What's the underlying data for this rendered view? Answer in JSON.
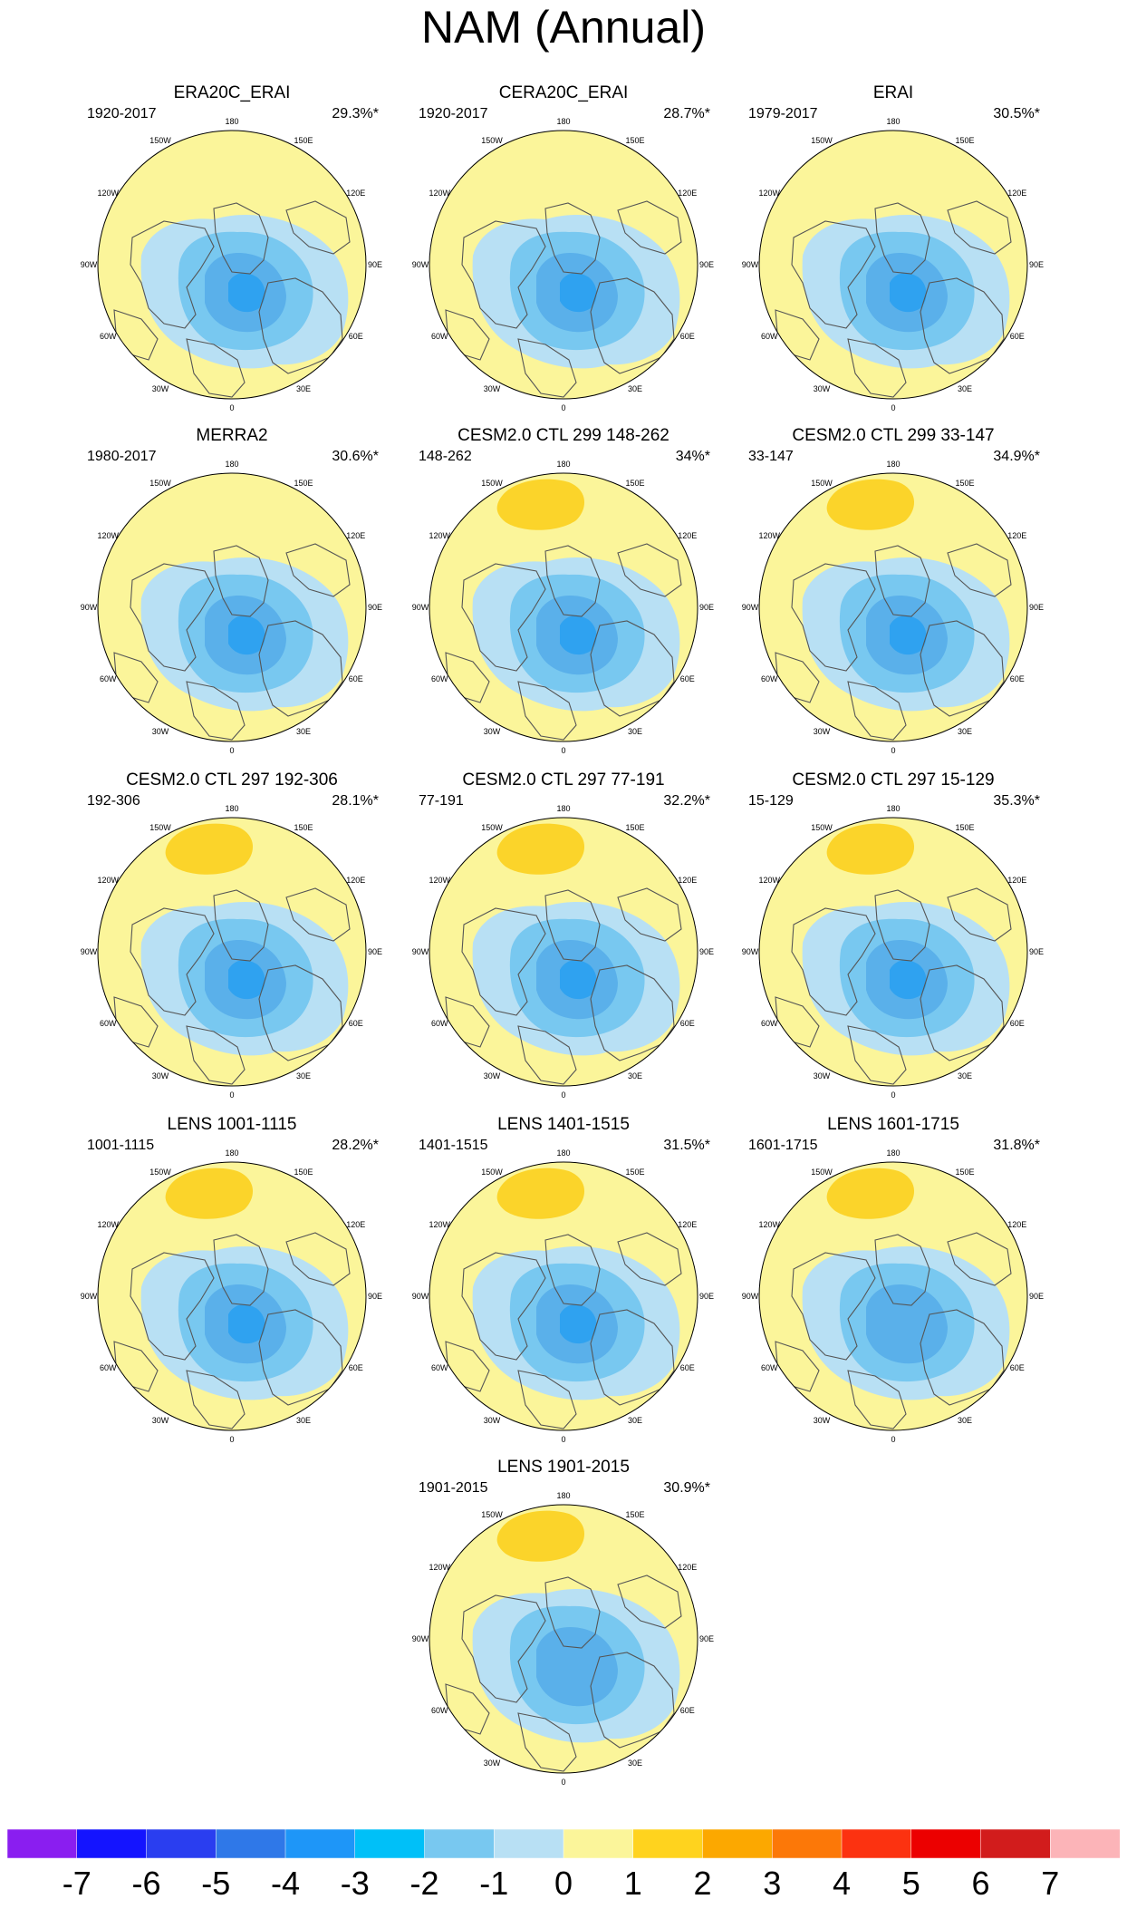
{
  "title": "NAM (Annual)",
  "chart_data": {
    "type": "contour-map",
    "projection": "polar-stereographic north",
    "variable": "NAM regression pattern",
    "longitude_labels": [
      "180",
      "150E",
      "120E",
      "90E",
      "60E",
      "30E",
      "0",
      "30W",
      "60W",
      "90W",
      "120W",
      "150W"
    ],
    "panels": [
      {
        "title": "ERA20C_ERAI",
        "period": "1920-2017",
        "variance": "29.3%*",
        "min_level": -4,
        "max_level": 1,
        "warm_lobe": false
      },
      {
        "title": "CERA20C_ERAI",
        "period": "1920-2017",
        "variance": "28.7%*",
        "min_level": -4,
        "max_level": 1,
        "warm_lobe": false
      },
      {
        "title": "ERAI",
        "period": "1979-2017",
        "variance": "30.5%*",
        "min_level": -4,
        "max_level": 1,
        "warm_lobe": false
      },
      {
        "title": "MERRA2",
        "period": "1980-2017",
        "variance": "30.6%*",
        "min_level": -4,
        "max_level": 2,
        "warm_lobe": false
      },
      {
        "title": "CESM2.0 CTL 299 148-262",
        "period": "148-262",
        "variance": "34%*",
        "min_level": -4,
        "max_level": 2,
        "warm_lobe": true
      },
      {
        "title": "CESM2.0 CTL 299 33-147",
        "period": "33-147",
        "variance": "34.9%*",
        "min_level": -4,
        "max_level": 2,
        "warm_lobe": true
      },
      {
        "title": "CESM2.0 CTL 297 192-306",
        "period": "192-306",
        "variance": "28.1%*",
        "min_level": -4,
        "max_level": 2,
        "warm_lobe": true
      },
      {
        "title": "CESM2.0 CTL 297 77-191",
        "period": "77-191",
        "variance": "32.2%*",
        "min_level": -4,
        "max_level": 2,
        "warm_lobe": true
      },
      {
        "title": "CESM2.0 CTL 297 15-129",
        "period": "15-129",
        "variance": "35.3%*",
        "min_level": -4,
        "max_level": 2,
        "warm_lobe": true
      },
      {
        "title": "LENS 1001-1115",
        "period": "1001-1115",
        "variance": "28.2%*",
        "min_level": -4,
        "max_level": 2,
        "warm_lobe": true
      },
      {
        "title": "LENS 1401-1515",
        "period": "1401-1515",
        "variance": "31.5%*",
        "min_level": -4,
        "max_level": 2,
        "warm_lobe": true
      },
      {
        "title": "LENS 1601-1715",
        "period": "1601-1715",
        "variance": "31.8%*",
        "min_level": -3,
        "max_level": 2,
        "warm_lobe": true
      },
      {
        "title": "LENS 1901-2015",
        "period": "1901-2015",
        "variance": "30.9%*",
        "min_level": -3,
        "max_level": 3,
        "warm_lobe": true
      }
    ],
    "colorbar": {
      "tick_labels": [
        "-7",
        "-6",
        "-5",
        "-4",
        "-3",
        "-2",
        "-1",
        "0",
        "1",
        "2",
        "3",
        "4",
        "5",
        "6",
        "7"
      ],
      "colors": [
        "#8a1ef0",
        "#1414ff",
        "#2a3ef0",
        "#2f78e8",
        "#1e96f8",
        "#00c0f8",
        "#78c8f0",
        "#b8e0f4",
        "#fbf59a",
        "#ffd31e",
        "#fca800",
        "#fc7808",
        "#fc3210",
        "#ec0000",
        "#d21c1c",
        "#fcb4b8"
      ]
    },
    "map_colors": {
      "ocean_base": "#fbf59a",
      "ring_minus1": "#b8e0f4",
      "ring_minus2": "#78c8f0",
      "core_minus3": "#5ab0ea",
      "core_minus4": "#2fa2f0",
      "warm_plus2": "#fbd42a",
      "coast": "#555555"
    }
  }
}
